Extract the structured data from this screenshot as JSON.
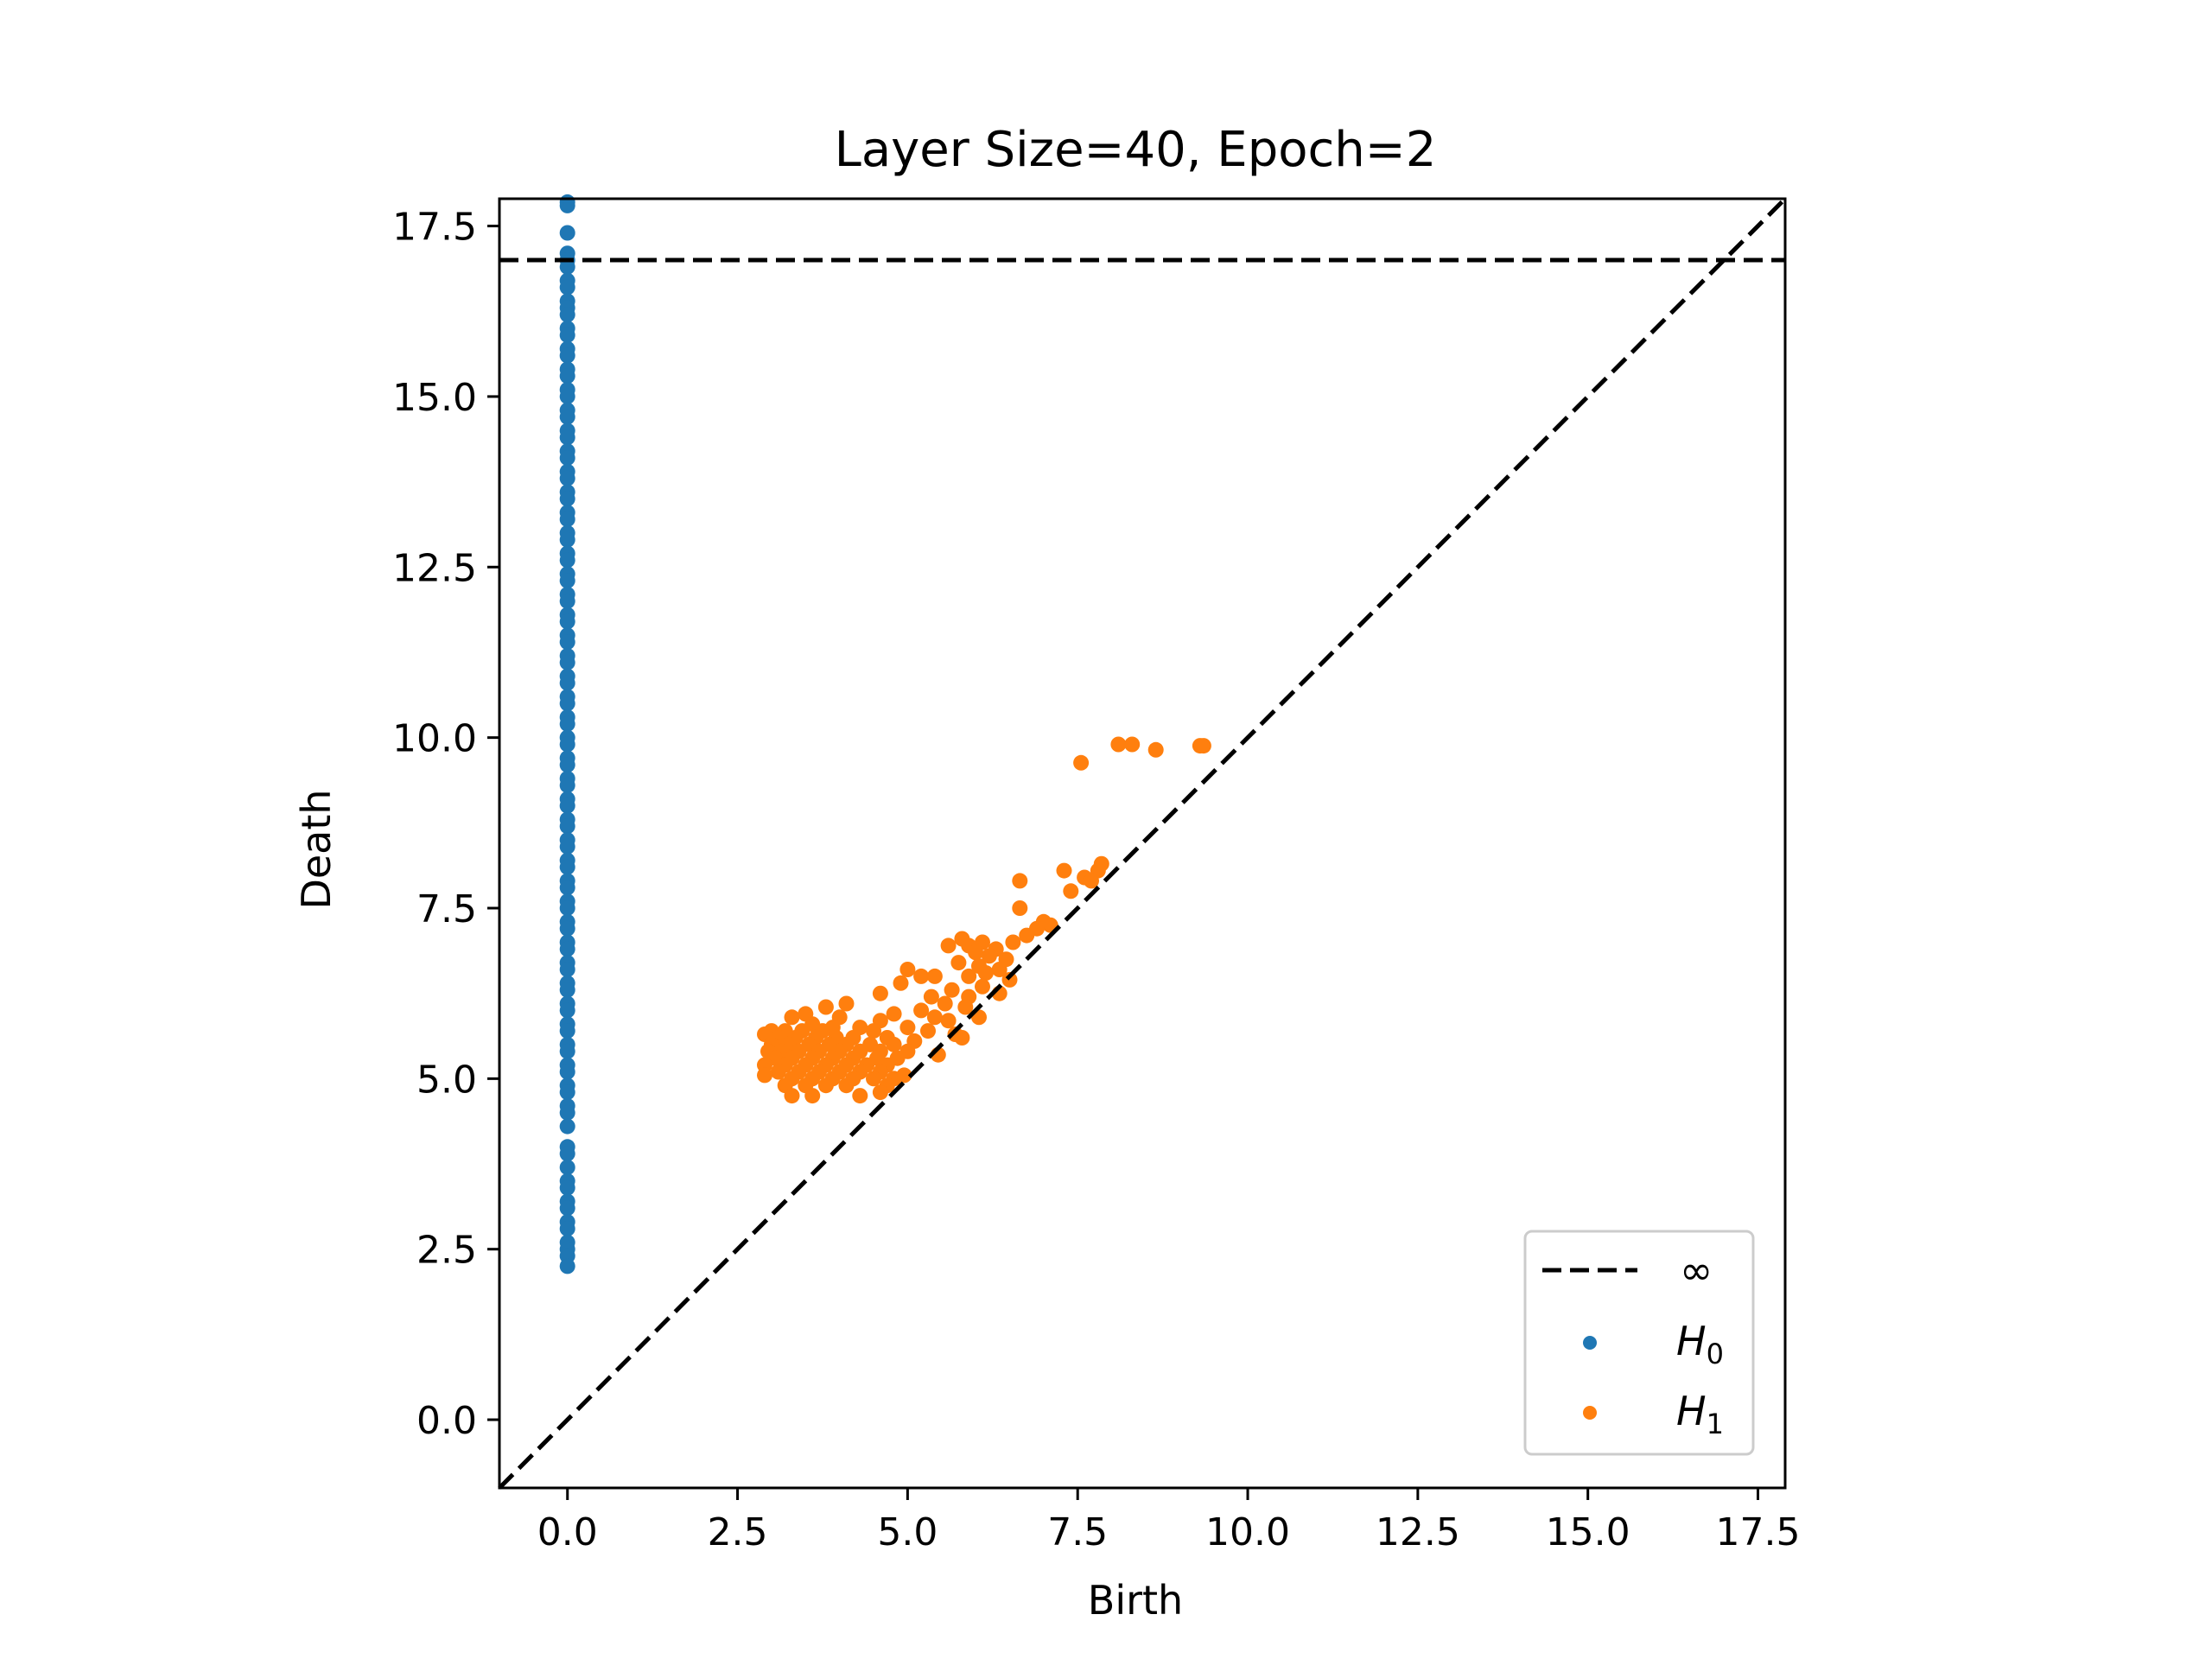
{
  "chart_data": {
    "type": "scatter",
    "title": "Layer Size=40, Epoch=2",
    "xlabel": "Birth",
    "ylabel": "Death",
    "xlim": [
      -1.0,
      17.9
    ],
    "ylim": [
      -1.0,
      17.9
    ],
    "xticks": [
      "0.0",
      "2.5",
      "5.0",
      "7.5",
      "10.0",
      "12.5",
      "15.0",
      "17.5"
    ],
    "yticks": [
      "0.0",
      "2.5",
      "5.0",
      "7.5",
      "10.0",
      "12.5",
      "15.0",
      "17.5"
    ],
    "tick_values": [
      0,
      2.5,
      5,
      7.5,
      10,
      12.5,
      15,
      17.5
    ],
    "infinity_line": 17.0,
    "diagonal": true,
    "legend_position": "lower right",
    "legend": [
      {
        "label": "∞",
        "kind": "dashed-line",
        "color": "#000000"
      },
      {
        "label": "H",
        "sub": "0",
        "kind": "point",
        "color": "#1f77b4"
      },
      {
        "label": "H",
        "sub": "1",
        "kind": "point",
        "color": "#ff7f0e"
      }
    ],
    "series": [
      {
        "name": "H0",
        "color": "#1f77b4",
        "points": [
          [
            0,
            17.85
          ],
          [
            0,
            17.8
          ],
          [
            0,
            17.4
          ],
          [
            0,
            17.1
          ],
          [
            0,
            17.0
          ],
          [
            0,
            16.9
          ],
          [
            0,
            16.7
          ],
          [
            0,
            16.6
          ],
          [
            0,
            16.4
          ],
          [
            0,
            16.3
          ],
          [
            0,
            16.2
          ],
          [
            0,
            16.0
          ],
          [
            0,
            15.9
          ],
          [
            0,
            15.7
          ],
          [
            0,
            15.6
          ],
          [
            0,
            15.4
          ],
          [
            0,
            15.3
          ],
          [
            0,
            15.1
          ],
          [
            0,
            15.0
          ],
          [
            0,
            14.8
          ],
          [
            0,
            14.7
          ],
          [
            0,
            14.5
          ],
          [
            0,
            14.4
          ],
          [
            0,
            14.2
          ],
          [
            0,
            14.1
          ],
          [
            0,
            13.9
          ],
          [
            0,
            13.8
          ],
          [
            0,
            13.6
          ],
          [
            0,
            13.5
          ],
          [
            0,
            13.3
          ],
          [
            0,
            13.2
          ],
          [
            0,
            13.0
          ],
          [
            0,
            12.9
          ],
          [
            0,
            12.7
          ],
          [
            0,
            12.6
          ],
          [
            0,
            12.4
          ],
          [
            0,
            12.3
          ],
          [
            0,
            12.1
          ],
          [
            0,
            12.0
          ],
          [
            0,
            11.8
          ],
          [
            0,
            11.7
          ],
          [
            0,
            11.5
          ],
          [
            0,
            11.4
          ],
          [
            0,
            11.2
          ],
          [
            0,
            11.1
          ],
          [
            0,
            10.9
          ],
          [
            0,
            10.8
          ],
          [
            0,
            10.6
          ],
          [
            0,
            10.5
          ],
          [
            0,
            10.3
          ],
          [
            0,
            10.2
          ],
          [
            0,
            10.0
          ],
          [
            0,
            9.9
          ],
          [
            0,
            9.7
          ],
          [
            0,
            9.6
          ],
          [
            0,
            9.4
          ],
          [
            0,
            9.3
          ],
          [
            0,
            9.1
          ],
          [
            0,
            9.0
          ],
          [
            0,
            8.8
          ],
          [
            0,
            8.7
          ],
          [
            0,
            8.5
          ],
          [
            0,
            8.4
          ],
          [
            0,
            8.2
          ],
          [
            0,
            8.1
          ],
          [
            0,
            7.9
          ],
          [
            0,
            7.8
          ],
          [
            0,
            7.6
          ],
          [
            0,
            7.5
          ],
          [
            0,
            7.3
          ],
          [
            0,
            7.2
          ],
          [
            0,
            7.0
          ],
          [
            0,
            6.9
          ],
          [
            0,
            6.7
          ],
          [
            0,
            6.6
          ],
          [
            0,
            6.4
          ],
          [
            0,
            6.3
          ],
          [
            0,
            6.1
          ],
          [
            0,
            6.0
          ],
          [
            0,
            5.8
          ],
          [
            0,
            5.7
          ],
          [
            0,
            5.5
          ],
          [
            0,
            5.4
          ],
          [
            0,
            5.2
          ],
          [
            0,
            5.1
          ],
          [
            0,
            4.9
          ],
          [
            0,
            4.8
          ],
          [
            0,
            4.6
          ],
          [
            0,
            4.5
          ],
          [
            0,
            4.3
          ],
          [
            0,
            4.0
          ],
          [
            0,
            3.9
          ],
          [
            0,
            3.7
          ],
          [
            0,
            3.5
          ],
          [
            0,
            3.4
          ],
          [
            0,
            3.2
          ],
          [
            0,
            3.1
          ],
          [
            0,
            2.9
          ],
          [
            0,
            2.8
          ],
          [
            0,
            2.6
          ],
          [
            0,
            2.5
          ],
          [
            0,
            2.4
          ],
          [
            0,
            2.25
          ]
        ]
      },
      {
        "name": "H1",
        "color": "#ff7f0e",
        "points": [
          [
            8.1,
            9.9
          ],
          [
            8.3,
            9.9
          ],
          [
            8.65,
            9.82
          ],
          [
            9.3,
            9.88
          ],
          [
            9.35,
            9.88
          ],
          [
            7.55,
            9.63
          ],
          [
            7.85,
            8.15
          ],
          [
            7.8,
            8.05
          ],
          [
            7.3,
            8.05
          ],
          [
            7.6,
            7.95
          ],
          [
            7.7,
            7.9
          ],
          [
            6.65,
            7.9
          ],
          [
            7.4,
            7.75
          ],
          [
            6.65,
            7.5
          ],
          [
            7.0,
            7.3
          ],
          [
            7.1,
            7.25
          ],
          [
            6.9,
            7.2
          ],
          [
            6.75,
            7.1
          ],
          [
            6.55,
            7.0
          ],
          [
            5.8,
            7.05
          ],
          [
            6.1,
            7.0
          ],
          [
            5.6,
            6.95
          ],
          [
            5.9,
            6.95
          ],
          [
            6.3,
            6.9
          ],
          [
            6.0,
            6.85
          ],
          [
            6.2,
            6.8
          ],
          [
            6.45,
            6.75
          ],
          [
            5.75,
            6.7
          ],
          [
            6.05,
            6.65
          ],
          [
            6.35,
            6.6
          ],
          [
            5.0,
            6.6
          ],
          [
            6.15,
            6.55
          ],
          [
            5.9,
            6.5
          ],
          [
            6.5,
            6.45
          ],
          [
            5.2,
            6.5
          ],
          [
            5.4,
            6.5
          ],
          [
            4.9,
            6.4
          ],
          [
            6.1,
            6.35
          ],
          [
            5.65,
            6.3
          ],
          [
            4.6,
            6.25
          ],
          [
            5.35,
            6.2
          ],
          [
            5.9,
            6.2
          ],
          [
            5.55,
            6.1
          ],
          [
            4.1,
            6.1
          ],
          [
            3.8,
            6.05
          ],
          [
            5.85,
            6.05
          ],
          [
            5.2,
            6.0
          ],
          [
            4.8,
            5.95
          ],
          [
            5.4,
            5.9
          ],
          [
            3.5,
            5.95
          ],
          [
            3.3,
            5.9
          ],
          [
            4.0,
            5.9
          ],
          [
            4.6,
            5.85
          ],
          [
            5.6,
            5.85
          ],
          [
            3.6,
            5.8
          ],
          [
            3.9,
            5.75
          ],
          [
            4.3,
            5.75
          ],
          [
            5.0,
            5.75
          ],
          [
            3.0,
            5.7
          ],
          [
            3.2,
            5.7
          ],
          [
            3.45,
            5.7
          ],
          [
            3.75,
            5.7
          ],
          [
            4.5,
            5.7
          ],
          [
            5.3,
            5.7
          ],
          [
            2.9,
            5.65
          ],
          [
            3.1,
            5.6
          ],
          [
            3.35,
            5.6
          ],
          [
            3.65,
            5.6
          ],
          [
            3.95,
            5.6
          ],
          [
            4.2,
            5.6
          ],
          [
            4.7,
            5.6
          ],
          [
            5.1,
            5.55
          ],
          [
            3.0,
            5.5
          ],
          [
            3.25,
            5.5
          ],
          [
            3.55,
            5.5
          ],
          [
            3.85,
            5.5
          ],
          [
            4.1,
            5.5
          ],
          [
            4.45,
            5.5
          ],
          [
            4.8,
            5.5
          ],
          [
            2.95,
            5.4
          ],
          [
            3.15,
            5.4
          ],
          [
            3.4,
            5.4
          ],
          [
            3.7,
            5.4
          ],
          [
            4.0,
            5.4
          ],
          [
            4.3,
            5.4
          ],
          [
            4.6,
            5.4
          ],
          [
            5.0,
            5.4
          ],
          [
            3.05,
            5.3
          ],
          [
            3.3,
            5.3
          ],
          [
            3.6,
            5.3
          ],
          [
            3.9,
            5.3
          ],
          [
            4.2,
            5.3
          ],
          [
            4.55,
            5.3
          ],
          [
            4.85,
            5.3
          ],
          [
            2.9,
            5.2
          ],
          [
            3.2,
            5.2
          ],
          [
            3.5,
            5.2
          ],
          [
            3.8,
            5.2
          ],
          [
            4.1,
            5.2
          ],
          [
            4.4,
            5.2
          ],
          [
            4.7,
            5.2
          ],
          [
            3.1,
            5.1
          ],
          [
            3.4,
            5.1
          ],
          [
            3.7,
            5.1
          ],
          [
            4.0,
            5.1
          ],
          [
            4.3,
            5.1
          ],
          [
            4.6,
            5.1
          ],
          [
            2.9,
            5.05
          ],
          [
            3.3,
            5.0
          ],
          [
            3.6,
            5.0
          ],
          [
            3.9,
            5.0
          ],
          [
            4.2,
            5.0
          ],
          [
            4.5,
            5.0
          ],
          [
            4.8,
            5.0
          ],
          [
            3.2,
            4.9
          ],
          [
            3.5,
            4.9
          ],
          [
            3.8,
            4.9
          ],
          [
            4.1,
            4.9
          ],
          [
            4.7,
            4.9
          ],
          [
            3.3,
            4.75
          ],
          [
            3.6,
            4.75
          ],
          [
            4.3,
            4.75
          ],
          [
            4.6,
            4.8
          ],
          [
            5.8,
            5.6
          ],
          [
            5.45,
            5.35
          ],
          [
            4.95,
            5.05
          ],
          [
            6.05,
            5.9
          ],
          [
            6.35,
            6.25
          ],
          [
            5.7,
            5.65
          ]
        ]
      }
    ]
  }
}
